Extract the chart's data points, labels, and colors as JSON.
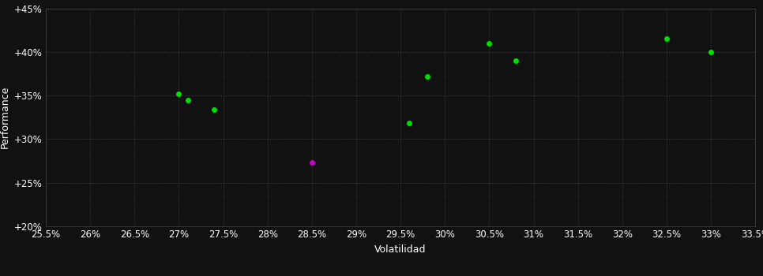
{
  "background_color": "#111111",
  "plot_bg_color": "#111111",
  "grid_color": "#444444",
  "text_color": "#ffffff",
  "xlabel": "Volatilidad",
  "ylabel": "Performance",
  "xlim": [
    0.255,
    0.335
  ],
  "ylim": [
    0.2,
    0.45
  ],
  "xticks": [
    0.255,
    0.26,
    0.265,
    0.27,
    0.275,
    0.28,
    0.285,
    0.29,
    0.295,
    0.3,
    0.305,
    0.31,
    0.315,
    0.32,
    0.325,
    0.33,
    0.335
  ],
  "xtick_labels": [
    "25.5%",
    "26%",
    "26.5%",
    "27%",
    "27.5%",
    "28%",
    "28.5%",
    "29%",
    "29.5%",
    "30%",
    "30.5%",
    "31%",
    "31.5%",
    "32%",
    "32.5%",
    "33%",
    "33.5%"
  ],
  "yticks": [
    0.2,
    0.25,
    0.3,
    0.35,
    0.4,
    0.45
  ],
  "ytick_labels": [
    "+20%",
    "+25%",
    "+30%",
    "+35%",
    "+40%",
    "+45%"
  ],
  "green_points": [
    [
      0.27,
      0.352
    ],
    [
      0.271,
      0.345
    ],
    [
      0.274,
      0.334
    ],
    [
      0.296,
      0.318
    ],
    [
      0.298,
      0.372
    ],
    [
      0.305,
      0.41
    ],
    [
      0.308,
      0.39
    ],
    [
      0.325,
      0.415
    ],
    [
      0.33,
      0.4
    ]
  ],
  "magenta_points": [
    [
      0.285,
      0.273
    ]
  ],
  "dot_size": 25,
  "green_color": "#00dd00",
  "magenta_color": "#cc00cc",
  "font_size": 8.5,
  "label_font_size": 9
}
